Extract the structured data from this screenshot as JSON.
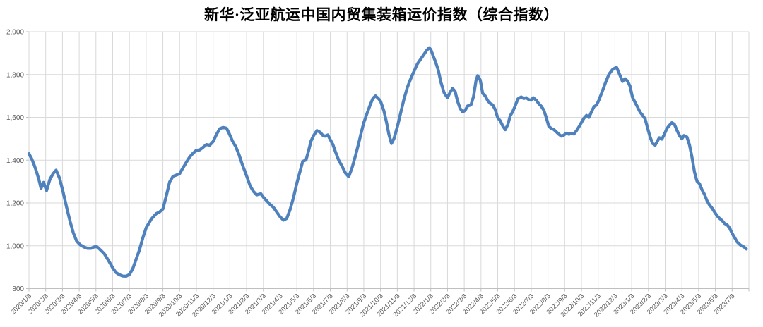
{
  "chart": {
    "title": "新华·泛亚航运中国内贸集装箱运价指数（综合指数）"
  },
  "colors": {
    "line": "#4F81BD",
    "grid": "#D9D9D9",
    "axis": "#BFBFBF",
    "tick_text": "#595959",
    "title_text": "#000000",
    "background": "#FFFFFF"
  },
  "chart_data": {
    "type": "line",
    "title": "新华·泛亚航运中国内贸集装箱运价指数（综合指数）",
    "legend": "none",
    "grid": true,
    "y_axis": {
      "min": 800,
      "max": 2000,
      "step": 200,
      "tick_labels": [
        "2,000",
        "1,800",
        "1,600",
        "1,400",
        "1,200",
        "1,000",
        "800"
      ],
      "tick_values": [
        2000,
        1800,
        1600,
        1400,
        1200,
        1000,
        800
      ]
    },
    "x_axis": {
      "unit": "months since 2020/1/3 (data sampled weekly)",
      "tick_labels": [
        "2020/1/3",
        "2020/2/3",
        "2020/3/3",
        "2020/4/3",
        "2020/5/3",
        "2020/6/3",
        "2020/7/3",
        "2020/8/3",
        "2020/9/3",
        "2020/10/3",
        "2020/11/3",
        "2020/12/3",
        "2021/1/3",
        "2021/2/3",
        "2021/3/3",
        "2021/4/3",
        "2021/5/3",
        "2021/6/3",
        "2021/7/3",
        "2021/8/3",
        "2021/9/3",
        "2021/10/3",
        "2021/11/3",
        "2021/12/3",
        "2022/1/3",
        "2022/2/3",
        "2022/3/3",
        "2022/4/3",
        "2022/5/3",
        "2022/6/3",
        "2022/7/3",
        "2022/8/3",
        "2022/9/3",
        "2022/10/3",
        "2022/11/3",
        "2022/12/3",
        "2023/1/3",
        "2023/2/3",
        "2023/3/3",
        "2023/4/3",
        "2023/5/3",
        "2023/6/3",
        "2023/7/3"
      ]
    },
    "series": [
      {
        "name": "综合指数",
        "color": "#4F81BD",
        "points": [
          [
            0.0,
            1430
          ],
          [
            0.15,
            1408
          ],
          [
            0.3,
            1380
          ],
          [
            0.45,
            1346
          ],
          [
            0.6,
            1308
          ],
          [
            0.72,
            1268
          ],
          [
            0.87,
            1296
          ],
          [
            1.05,
            1258
          ],
          [
            1.25,
            1310
          ],
          [
            1.45,
            1338
          ],
          [
            1.62,
            1353
          ],
          [
            1.83,
            1315
          ],
          [
            2.05,
            1247
          ],
          [
            2.25,
            1180
          ],
          [
            2.45,
            1115
          ],
          [
            2.65,
            1060
          ],
          [
            2.85,
            1022
          ],
          [
            3.05,
            1005
          ],
          [
            3.3,
            994
          ],
          [
            3.5,
            988
          ],
          [
            3.7,
            988
          ],
          [
            3.9,
            995
          ],
          [
            4.05,
            996
          ],
          [
            4.25,
            982
          ],
          [
            4.5,
            963
          ],
          [
            4.75,
            931
          ],
          [
            5.0,
            897
          ],
          [
            5.2,
            875
          ],
          [
            5.4,
            865
          ],
          [
            5.6,
            859
          ],
          [
            5.8,
            858
          ],
          [
            6.0,
            866
          ],
          [
            6.2,
            893
          ],
          [
            6.4,
            937
          ],
          [
            6.6,
            981
          ],
          [
            6.8,
            1036
          ],
          [
            7.0,
            1084
          ],
          [
            7.3,
            1124
          ],
          [
            7.6,
            1150
          ],
          [
            7.8,
            1158
          ],
          [
            8.0,
            1172
          ],
          [
            8.2,
            1232
          ],
          [
            8.4,
            1298
          ],
          [
            8.6,
            1324
          ],
          [
            8.8,
            1330
          ],
          [
            9.0,
            1337
          ],
          [
            9.2,
            1364
          ],
          [
            9.4,
            1390
          ],
          [
            9.6,
            1415
          ],
          [
            9.8,
            1432
          ],
          [
            10.0,
            1446
          ],
          [
            10.2,
            1448
          ],
          [
            10.4,
            1460
          ],
          [
            10.6,
            1473
          ],
          [
            10.8,
            1470
          ],
          [
            11.0,
            1487
          ],
          [
            11.2,
            1520
          ],
          [
            11.4,
            1547
          ],
          [
            11.6,
            1553
          ],
          [
            11.8,
            1549
          ],
          [
            11.95,
            1526
          ],
          [
            12.15,
            1490
          ],
          [
            12.35,
            1463
          ],
          [
            12.55,
            1425
          ],
          [
            12.75,
            1378
          ],
          [
            13.0,
            1326
          ],
          [
            13.2,
            1282
          ],
          [
            13.4,
            1255
          ],
          [
            13.6,
            1238
          ],
          [
            13.85,
            1243
          ],
          [
            14.0,
            1227
          ],
          [
            14.2,
            1210
          ],
          [
            14.4,
            1193
          ],
          [
            14.6,
            1180
          ],
          [
            14.8,
            1158
          ],
          [
            15.0,
            1135
          ],
          [
            15.2,
            1120
          ],
          [
            15.4,
            1128
          ],
          [
            15.6,
            1170
          ],
          [
            15.8,
            1225
          ],
          [
            16.0,
            1293
          ],
          [
            16.2,
            1350
          ],
          [
            16.35,
            1394
          ],
          [
            16.55,
            1401
          ],
          [
            16.7,
            1444
          ],
          [
            16.85,
            1490
          ],
          [
            17.0,
            1515
          ],
          [
            17.2,
            1538
          ],
          [
            17.4,
            1530
          ],
          [
            17.55,
            1516
          ],
          [
            17.7,
            1512
          ],
          [
            17.85,
            1518
          ],
          [
            18.0,
            1495
          ],
          [
            18.15,
            1474
          ],
          [
            18.3,
            1440
          ],
          [
            18.5,
            1400
          ],
          [
            18.7,
            1372
          ],
          [
            18.9,
            1340
          ],
          [
            19.1,
            1322
          ],
          [
            19.3,
            1365
          ],
          [
            19.5,
            1420
          ],
          [
            19.7,
            1480
          ],
          [
            19.85,
            1530
          ],
          [
            20.0,
            1576
          ],
          [
            20.2,
            1620
          ],
          [
            20.4,
            1662
          ],
          [
            20.55,
            1690
          ],
          [
            20.7,
            1700
          ],
          [
            20.85,
            1690
          ],
          [
            21.0,
            1675
          ],
          [
            21.2,
            1630
          ],
          [
            21.35,
            1580
          ],
          [
            21.5,
            1520
          ],
          [
            21.65,
            1478
          ],
          [
            21.8,
            1500
          ],
          [
            22.0,
            1554
          ],
          [
            22.2,
            1620
          ],
          [
            22.4,
            1685
          ],
          [
            22.6,
            1740
          ],
          [
            22.8,
            1780
          ],
          [
            23.0,
            1815
          ],
          [
            23.2,
            1850
          ],
          [
            23.4,
            1872
          ],
          [
            23.6,
            1895
          ],
          [
            23.75,
            1912
          ],
          [
            23.9,
            1925
          ],
          [
            24.0,
            1917
          ],
          [
            24.15,
            1886
          ],
          [
            24.3,
            1855
          ],
          [
            24.45,
            1820
          ],
          [
            24.6,
            1765
          ],
          [
            24.8,
            1714
          ],
          [
            25.0,
            1692
          ],
          [
            25.15,
            1716
          ],
          [
            25.3,
            1735
          ],
          [
            25.45,
            1722
          ],
          [
            25.6,
            1675
          ],
          [
            25.75,
            1642
          ],
          [
            25.9,
            1625
          ],
          [
            26.05,
            1632
          ],
          [
            26.2,
            1653
          ],
          [
            26.4,
            1658
          ],
          [
            26.55,
            1696
          ],
          [
            26.7,
            1770
          ],
          [
            26.8,
            1795
          ],
          [
            26.95,
            1775
          ],
          [
            27.1,
            1712
          ],
          [
            27.25,
            1700
          ],
          [
            27.4,
            1678
          ],
          [
            27.55,
            1665
          ],
          [
            27.7,
            1658
          ],
          [
            27.85,
            1636
          ],
          [
            28.0,
            1598
          ],
          [
            28.15,
            1584
          ],
          [
            28.3,
            1560
          ],
          [
            28.45,
            1542
          ],
          [
            28.6,
            1566
          ],
          [
            28.75,
            1608
          ],
          [
            28.9,
            1628
          ],
          [
            29.05,
            1655
          ],
          [
            29.2,
            1686
          ],
          [
            29.4,
            1695
          ],
          [
            29.55,
            1688
          ],
          [
            29.7,
            1692
          ],
          [
            29.85,
            1683
          ],
          [
            30.0,
            1680
          ],
          [
            30.12,
            1692
          ],
          [
            30.3,
            1680
          ],
          [
            30.45,
            1664
          ],
          [
            30.6,
            1652
          ],
          [
            30.75,
            1634
          ],
          [
            30.9,
            1598
          ],
          [
            31.05,
            1558
          ],
          [
            31.2,
            1548
          ],
          [
            31.35,
            1543
          ],
          [
            31.5,
            1532
          ],
          [
            31.65,
            1521
          ],
          [
            31.8,
            1512
          ],
          [
            31.95,
            1517
          ],
          [
            32.1,
            1526
          ],
          [
            32.25,
            1521
          ],
          [
            32.4,
            1526
          ],
          [
            32.55,
            1522
          ],
          [
            32.7,
            1537
          ],
          [
            32.85,
            1556
          ],
          [
            33.0,
            1576
          ],
          [
            33.15,
            1596
          ],
          [
            33.3,
            1609
          ],
          [
            33.45,
            1600
          ],
          [
            33.6,
            1626
          ],
          [
            33.75,
            1650
          ],
          [
            33.9,
            1657
          ],
          [
            34.05,
            1682
          ],
          [
            34.25,
            1722
          ],
          [
            34.45,
            1765
          ],
          [
            34.65,
            1802
          ],
          [
            34.85,
            1823
          ],
          [
            35.0,
            1830
          ],
          [
            35.1,
            1833
          ],
          [
            35.25,
            1806
          ],
          [
            35.45,
            1768
          ],
          [
            35.6,
            1780
          ],
          [
            35.75,
            1770
          ],
          [
            35.9,
            1746
          ],
          [
            36.05,
            1693
          ],
          [
            36.2,
            1670
          ],
          [
            36.35,
            1648
          ],
          [
            36.5,
            1624
          ],
          [
            36.65,
            1610
          ],
          [
            36.8,
            1593
          ],
          [
            36.95,
            1550
          ],
          [
            37.1,
            1508
          ],
          [
            37.25,
            1478
          ],
          [
            37.4,
            1470
          ],
          [
            37.55,
            1490
          ],
          [
            37.65,
            1505
          ],
          [
            37.8,
            1498
          ],
          [
            37.95,
            1520
          ],
          [
            38.1,
            1548
          ],
          [
            38.25,
            1562
          ],
          [
            38.4,
            1575
          ],
          [
            38.55,
            1568
          ],
          [
            38.7,
            1540
          ],
          [
            38.85,
            1515
          ],
          [
            39.0,
            1500
          ],
          [
            39.12,
            1515
          ],
          [
            39.3,
            1508
          ],
          [
            39.45,
            1472
          ],
          [
            39.6,
            1415
          ],
          [
            39.75,
            1345
          ],
          [
            39.9,
            1302
          ],
          [
            40.05,
            1290
          ],
          [
            40.2,
            1262
          ],
          [
            40.35,
            1240
          ],
          [
            40.5,
            1210
          ],
          [
            40.65,
            1190
          ],
          [
            40.8,
            1176
          ],
          [
            40.95,
            1158
          ],
          [
            41.1,
            1140
          ],
          [
            41.25,
            1128
          ],
          [
            41.4,
            1118
          ],
          [
            41.55,
            1104
          ],
          [
            41.7,
            1098
          ],
          [
            41.85,
            1083
          ],
          [
            42.0,
            1058
          ],
          [
            42.15,
            1038
          ],
          [
            42.3,
            1018
          ],
          [
            42.5,
            1003
          ],
          [
            42.7,
            995
          ],
          [
            42.85,
            985
          ]
        ]
      }
    ]
  }
}
